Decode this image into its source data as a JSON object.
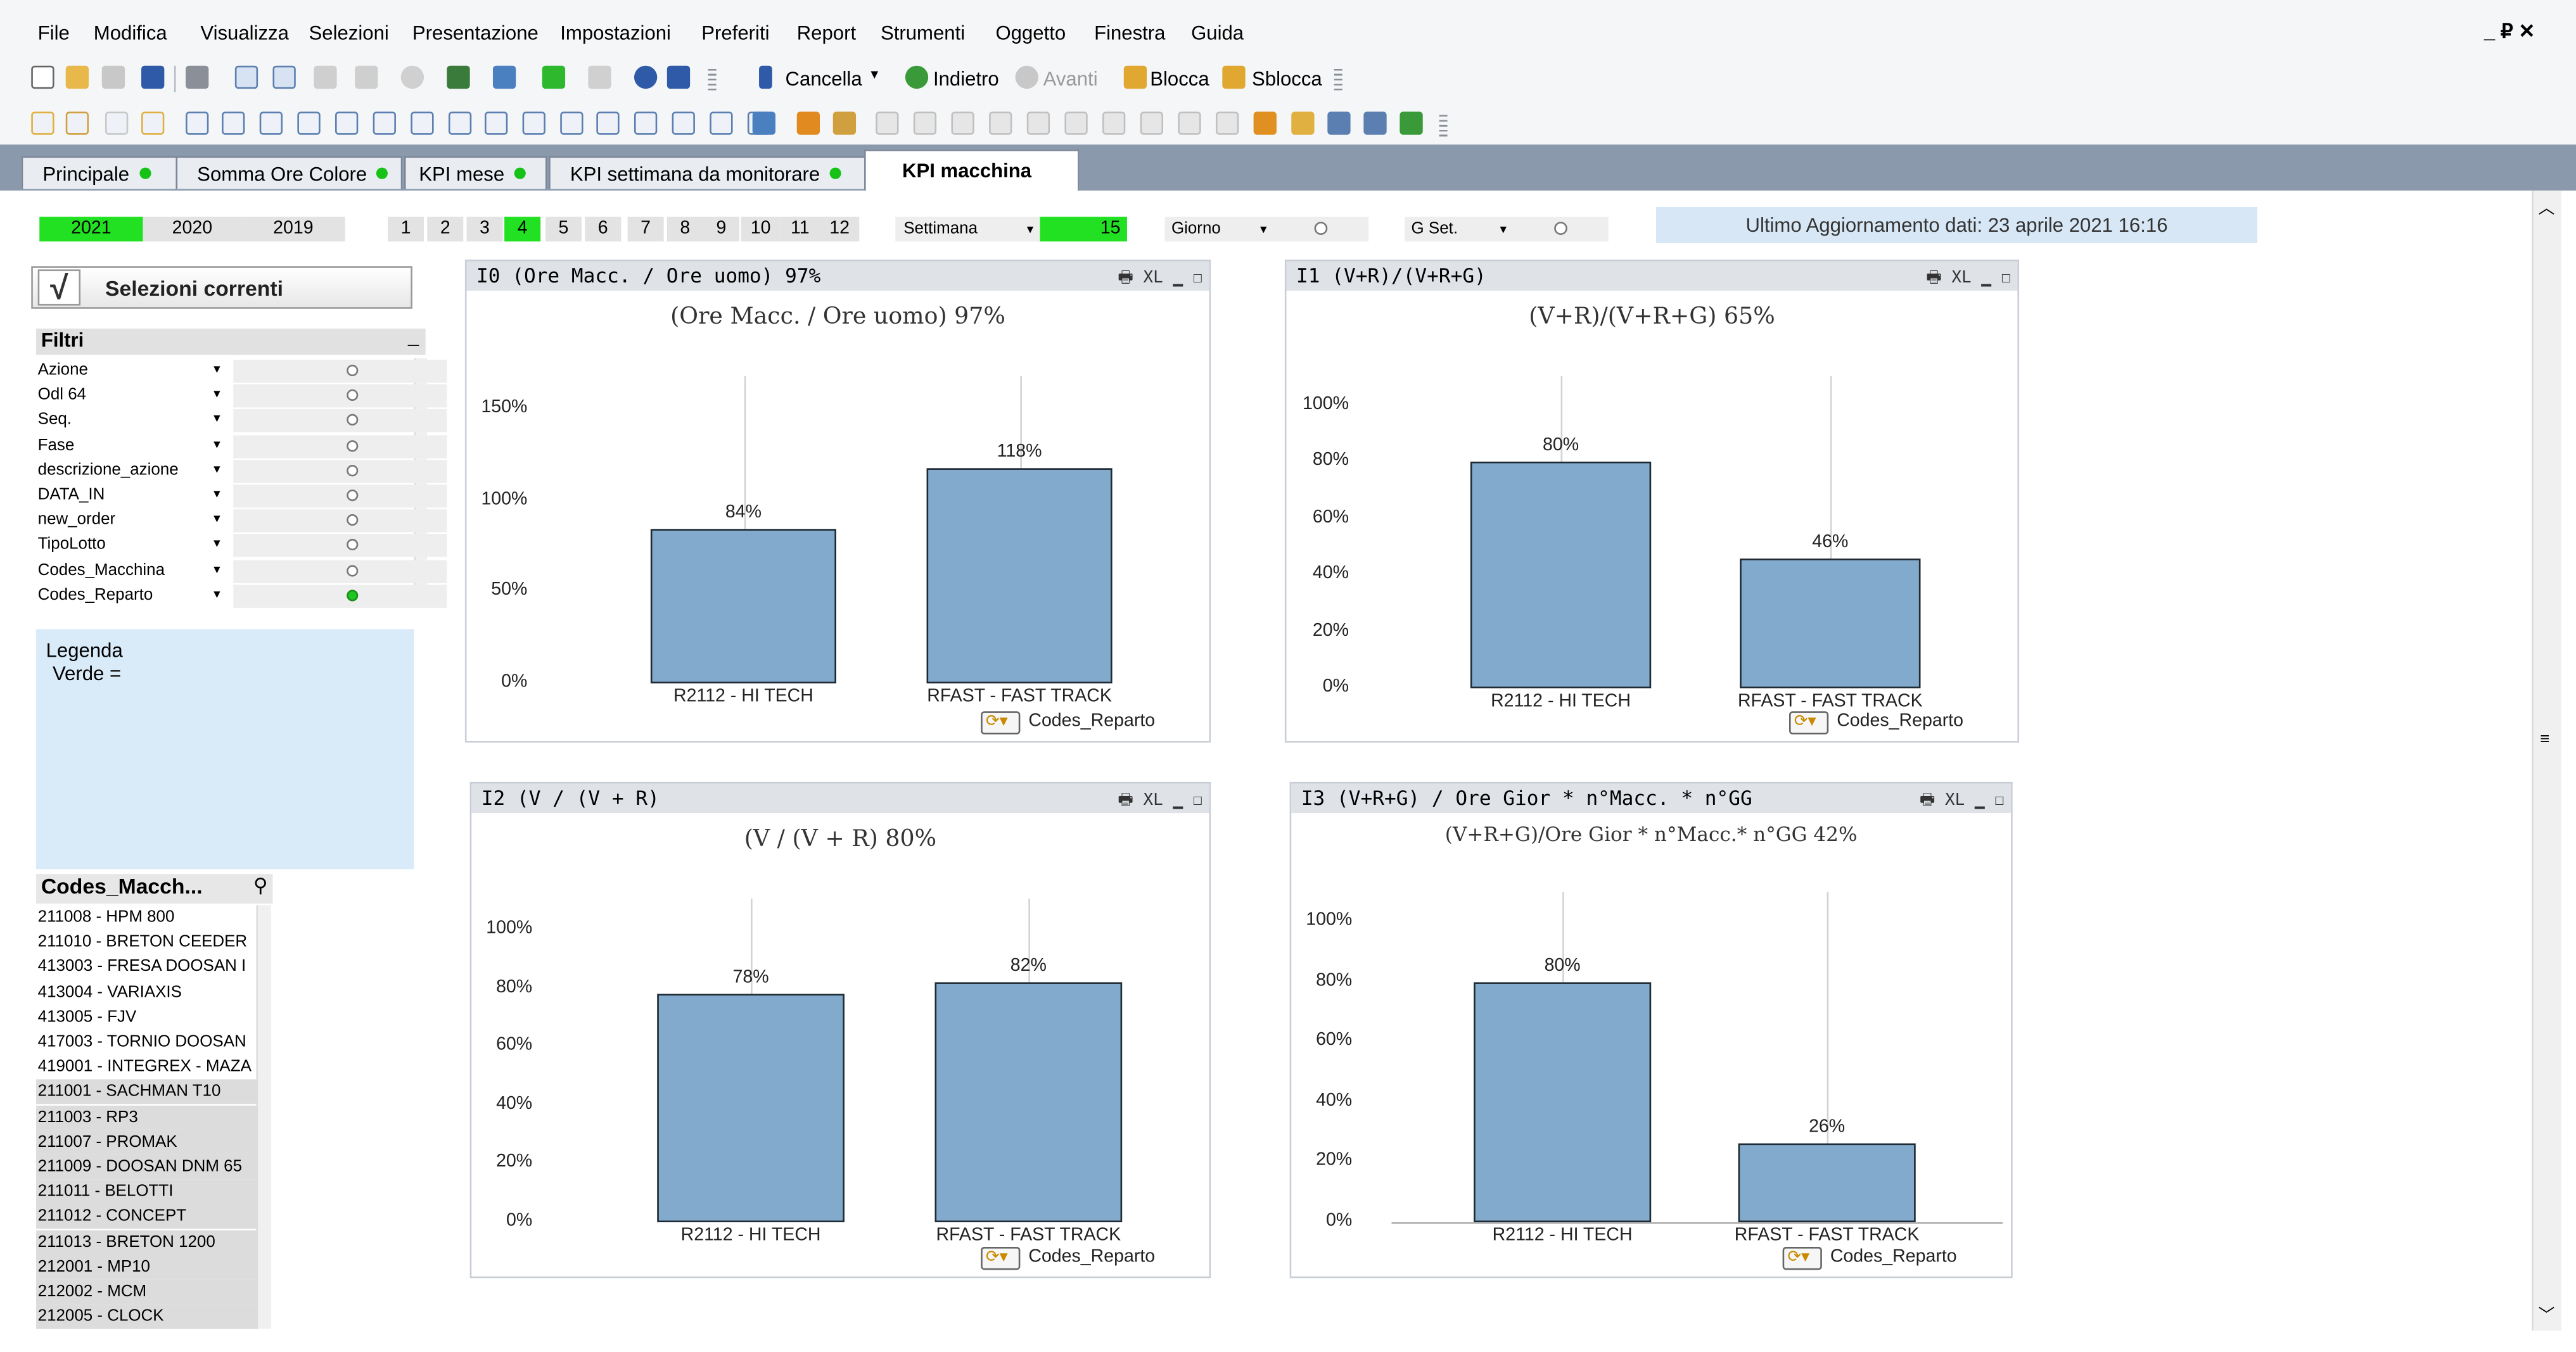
{
  "menu": [
    "File",
    "Modifica",
    "Visualizza",
    "Selezioni",
    "Presentazione",
    "Impostazioni",
    "Preferiti",
    "Report",
    "Strumenti",
    "Oggetto",
    "Finestra",
    "Guida"
  ],
  "window_controls": "_ ₽ ✕",
  "toolbar": {
    "cancella": "Cancella",
    "indietro": "Indietro",
    "avanti": "Avanti",
    "blocca": "Blocca",
    "sblocca": "Sblocca"
  },
  "tabs": [
    {
      "label": "Principale"
    },
    {
      "label": "Somma Ore Colore"
    },
    {
      "label": "KPI mese"
    },
    {
      "label": "KPI settimana da monitorare"
    },
    {
      "label": "KPI macchina"
    }
  ],
  "years": [
    "2021",
    "2020",
    "2019"
  ],
  "months": [
    "1",
    "2",
    "3",
    "4",
    "5",
    "6",
    "7",
    "8",
    "9",
    "10",
    "11",
    "12"
  ],
  "settimana": {
    "label": "Settimana",
    "value": "15"
  },
  "giorno": {
    "label": "Giorno"
  },
  "gset": {
    "label": "G Set."
  },
  "update_info": "Ultimo Aggiornamento dati: 23 aprile 2021  16:16",
  "current_selections": "Selezioni correnti",
  "filters": {
    "title": "Filtri",
    "rows": [
      "Azione",
      "Odl 64",
      "Seq.",
      "Fase",
      "descrizione_azione",
      "DATA_IN",
      "new_order",
      "TipoLotto",
      "Codes_Macchina",
      "Codes_Reparto"
    ]
  },
  "legend": {
    "title": "Legenda",
    "line": "Verde ="
  },
  "machines": {
    "title": "Codes_Macch...",
    "items": [
      {
        "label": "211008 - HPM 800",
        "excluded": false
      },
      {
        "label": "211010 - BRETON CEEDER",
        "excluded": false
      },
      {
        "label": "413003 - FRESA DOOSAN I",
        "excluded": false
      },
      {
        "label": "413004 - VARIAXIS",
        "excluded": false
      },
      {
        "label": "413005 - FJV",
        "excluded": false
      },
      {
        "label": "417003 - TORNIO DOOSAN",
        "excluded": false
      },
      {
        "label": "419001 - INTEGREX - MAZA",
        "excluded": false
      },
      {
        "label": "211001 - SACHMAN T10",
        "excluded": true
      },
      {
        "label": "211003 - RP3",
        "excluded": true
      },
      {
        "label": "211007 - PROMAK",
        "excluded": true
      },
      {
        "label": "211009 - DOOSAN DNM 65",
        "excluded": true
      },
      {
        "label": "211011 - BELOTTI",
        "excluded": true
      },
      {
        "label": "211012 - CONCEPT",
        "excluded": true
      },
      {
        "label": "211013 - BRETON 1200",
        "excluded": true
      },
      {
        "label": "212001 - MP10",
        "excluded": true
      },
      {
        "label": "212002 - MCM",
        "excluded": true
      },
      {
        "label": "212005 - CLOCK",
        "excluded": true
      }
    ]
  },
  "dimension_label": "Codes_Reparto",
  "caption_icons": "🖶 XL ▁ ☐",
  "charts": [
    {
      "caption": "I0 (Ore Macc. /  Ore uomo)  97%",
      "title": "(Ore Macc. /  Ore uomo)  97%",
      "type": "bar",
      "categories": [
        "R2112 - HI TECH",
        "RFAST - FAST TRACK"
      ],
      "values": [
        84,
        118
      ],
      "labels": [
        "84%",
        "118%"
      ],
      "yticks": [
        "0%",
        "50%",
        "100%",
        "150%"
      ],
      "ymax": 150
    },
    {
      "caption": "I1 (V+R)/(V+R+G)",
      "title": "(V+R)/(V+R+G) 65%",
      "type": "bar",
      "categories": [
        "R2112 - HI TECH",
        "RFAST - FAST TRACK"
      ],
      "values": [
        80,
        46
      ],
      "labels": [
        "80%",
        "46%"
      ],
      "yticks": [
        "0%",
        "20%",
        "40%",
        "60%",
        "80%",
        "100%"
      ],
      "ymax": 100
    },
    {
      "caption": "I2 (V / (V + R)",
      "title": "(V / (V + R)  80%",
      "type": "bar",
      "categories": [
        "R2112 - HI TECH",
        "RFAST - FAST TRACK"
      ],
      "values": [
        78,
        82
      ],
      "labels": [
        "78%",
        "82%"
      ],
      "yticks": [
        "0%",
        "20%",
        "40%",
        "60%",
        "80%",
        "100%"
      ],
      "ymax": 100
    },
    {
      "caption": "I3 (V+R+G) / Ore Gior * n°Macc. * n°GG",
      "title": "(V+R+G)/Ore Gior * n°Macc.* n°GG  42%",
      "type": "bar",
      "categories": [
        "R2112 - HI TECH",
        "RFAST - FAST TRACK"
      ],
      "values": [
        80,
        26
      ],
      "labels": [
        "80%",
        "26%"
      ],
      "yticks": [
        "0%",
        "20%",
        "40%",
        "60%",
        "80%",
        "100%"
      ],
      "ymax": 100
    }
  ],
  "colors": {
    "bar": "#82aacd",
    "selected": "#22e022",
    "tabbar": "#8b99ad",
    "legend_bg": "#d9eaf9"
  }
}
